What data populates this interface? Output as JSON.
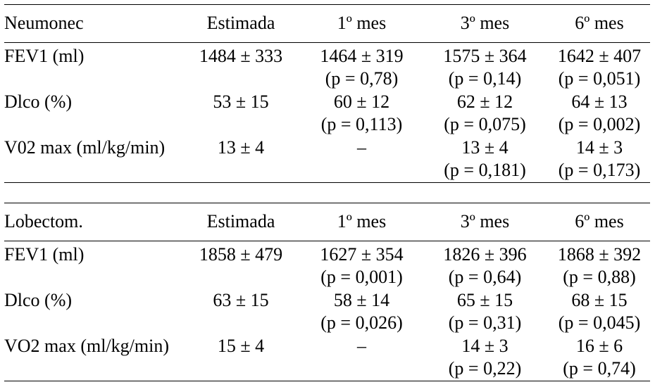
{
  "tables": [
    {
      "headers": [
        "Neumonec",
        "Estimada",
        "1º mes",
        "3º mes",
        "6º mes"
      ],
      "rows": [
        {
          "label": "FEV1 (ml)",
          "estimada": "1484 ± 333",
          "mes1": {
            "value": "1464 ± 319",
            "p": "(p = 0,78)"
          },
          "mes3": {
            "value": "1575 ± 364",
            "p": "(p = 0,14)"
          },
          "mes6": {
            "value": "1642 ± 407",
            "p": "(p = 0,051)"
          }
        },
        {
          "label": "Dlco (%)",
          "estimada": "53 ± 15",
          "mes1": {
            "value": "60 ± 12",
            "p": "(p = 0,113)"
          },
          "mes3": {
            "value": "62 ± 12",
            "p": "(p = 0,075)"
          },
          "mes6": {
            "value": "64 ± 13",
            "p": "(p = 0,002)"
          }
        },
        {
          "label": "V02 max (ml/kg/min)",
          "estimada": "13 ± 4",
          "mes1": {
            "value": "–",
            "p": ""
          },
          "mes3": {
            "value": "13 ± 4",
            "p": "(p = 0,181)"
          },
          "mes6": {
            "value": "14 ± 3",
            "p": "(p = 0,173)"
          }
        }
      ]
    },
    {
      "headers": [
        "Lobectom.",
        "Estimada",
        "1º mes",
        "3º mes",
        "6º mes"
      ],
      "rows": [
        {
          "label": "FEV1 (ml)",
          "estimada": "1858 ± 479",
          "mes1": {
            "value": "1627 ± 354",
            "p": "(p = 0,001)"
          },
          "mes3": {
            "value": "1826 ± 396",
            "p": "(p = 0,64)"
          },
          "mes6": {
            "value": "1868 ± 392",
            "p": "(p = 0,88)"
          }
        },
        {
          "label": "Dlco (%)",
          "estimada": "63 ± 15",
          "mes1": {
            "value": "58 ± 14",
            "p": "(p = 0,026)"
          },
          "mes3": {
            "value": "65 ± 15",
            "p": "(p = 0,31)"
          },
          "mes6": {
            "value": "68 ± 15",
            "p": "(p = 0,045)"
          }
        },
        {
          "label": "VO2 max (ml/kg/min)",
          "estimada": "15 ± 4",
          "mes1": {
            "value": "–",
            "p": ""
          },
          "mes3": {
            "value": "14 ± 3",
            "p": "(p = 0,22)"
          },
          "mes6": {
            "value": "16 ± 6",
            "p": "(p = 0,74)"
          }
        }
      ]
    }
  ]
}
